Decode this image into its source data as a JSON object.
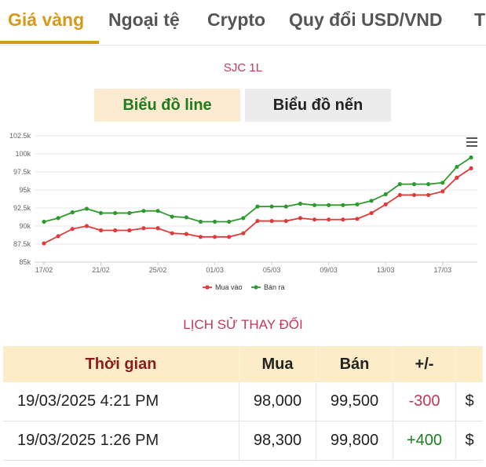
{
  "tabs": [
    {
      "label": "Giá vàng",
      "active": true
    },
    {
      "label": "Ngoại tệ",
      "active": false
    },
    {
      "label": "Crypto",
      "active": false
    },
    {
      "label": "Quy đổi USD/VND",
      "active": false
    },
    {
      "label": "T",
      "active": false
    }
  ],
  "chart_section": {
    "title": "SJC 1L",
    "toggle_line": "Biểu đồ line",
    "toggle_candle": "Biểu đồ nến",
    "menu_icon": "hamburger-menu-icon"
  },
  "colors": {
    "accent": "#d69a1a",
    "buy_series": "#e03a3a",
    "sell_series": "#2e9a2e",
    "title_red": "#c0395a"
  },
  "chart_data": {
    "type": "line",
    "title": "",
    "ylim": [
      85000,
      102500
    ],
    "y_ticks": [
      "85k",
      "87.5k",
      "90k",
      "92.5k",
      "95k",
      "97.5k",
      "100k",
      "102.5k"
    ],
    "x_ticks": [
      "17/02",
      "21/02",
      "25/02",
      "01/03",
      "05/03",
      "09/03",
      "13/03",
      "17/03"
    ],
    "legend_position": "bottom",
    "grid": true,
    "x": [
      "17/02",
      "18/02",
      "19/02",
      "20/02",
      "21/02",
      "22/02",
      "23/02",
      "24/02",
      "25/02",
      "26/02",
      "27/02",
      "28/02",
      "01/03",
      "02/03",
      "03/03",
      "04/03",
      "05/03",
      "06/03",
      "07/03",
      "08/03",
      "09/03",
      "10/03",
      "11/03",
      "12/03",
      "13/03",
      "14/03",
      "15/03",
      "16/03",
      "17/03",
      "18/03",
      "19/03"
    ],
    "series": [
      {
        "name": "Mua vào",
        "color": "#e03a3a",
        "values": [
          87600,
          88600,
          89600,
          90000,
          89400,
          89400,
          89400,
          89700,
          89700,
          89000,
          88900,
          88500,
          88500,
          88500,
          89000,
          90700,
          90700,
          90700,
          91100,
          90900,
          90900,
          90900,
          91000,
          91800,
          93000,
          94300,
          94300,
          94300,
          94800,
          96700,
          98000
        ]
      },
      {
        "name": "Bán ra",
        "color": "#2e9a2e",
        "values": [
          90600,
          91100,
          91900,
          92400,
          91800,
          91800,
          91800,
          92100,
          92100,
          91300,
          91200,
          90600,
          90600,
          90600,
          91100,
          92700,
          92700,
          92700,
          93100,
          92900,
          92900,
          92900,
          93000,
          93500,
          94400,
          95800,
          95800,
          95800,
          96000,
          98200,
          99500
        ]
      }
    ]
  },
  "history": {
    "title": "LỊCH SỬ THAY ĐỔI",
    "headers": {
      "time": "Thời gian",
      "buy": "Mua",
      "sell": "Bán",
      "change": "+/-"
    },
    "rows": [
      {
        "time": "19/03/2025 4:21 PM",
        "buy": "98,000",
        "sell": "99,500",
        "change": "-300",
        "extra": "$"
      },
      {
        "time": "19/03/2025 1:26 PM",
        "buy": "98,300",
        "sell": "99,800",
        "change": "+400",
        "extra": "$"
      }
    ]
  }
}
